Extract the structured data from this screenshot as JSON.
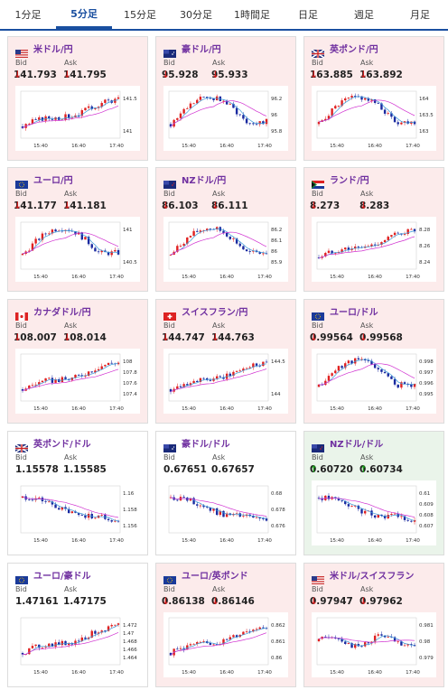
{
  "tabs": [
    "1分足",
    "5分足",
    "15分足",
    "30分足",
    "1時間足",
    "日足",
    "週足",
    "月足"
  ],
  "active_tab": 1,
  "bid_label": "Bid",
  "ask_label": "Ask",
  "x_ticks": [
    "15:40",
    "16:40",
    "17:40"
  ],
  "cards": [
    {
      "pair": "米ドル/円",
      "flag": "us",
      "dir": "down",
      "bid": "141.793",
      "ask": "141.795",
      "y_ticks": [
        "141.5",
        "141"
      ],
      "trend": "up"
    },
    {
      "pair": "豪ドル/円",
      "flag": "au",
      "dir": "down",
      "bid": "95.928",
      "ask": "95.933",
      "y_ticks": [
        "96.2",
        "96",
        "95.8"
      ],
      "trend": "hump"
    },
    {
      "pair": "英ポンド/円",
      "flag": "gb",
      "dir": "down",
      "bid": "163.885",
      "ask": "163.892",
      "y_ticks": [
        "164",
        "163.5",
        "163"
      ],
      "trend": "hump"
    },
    {
      "pair": "ユーロ/円",
      "flag": "eu",
      "dir": "down",
      "bid": "141.177",
      "ask": "141.181",
      "y_ticks": [
        "141",
        "140.5"
      ],
      "trend": "hump"
    },
    {
      "pair": "NZドル/円",
      "flag": "nz",
      "dir": "down",
      "bid": "86.103",
      "ask": "86.111",
      "y_ticks": [
        "86.2",
        "86.1",
        "86",
        "85.9"
      ],
      "trend": "hump"
    },
    {
      "pair": "ランド/円",
      "flag": "za",
      "dir": "down",
      "bid": "8.273",
      "ask": "8.283",
      "y_ticks": [
        "8.28",
        "8.26",
        "8.24"
      ],
      "trend": "up"
    },
    {
      "pair": "カナダドル/円",
      "flag": "ca",
      "dir": "down",
      "bid": "108.007",
      "ask": "108.014",
      "y_ticks": [
        "108",
        "107.8",
        "107.6",
        "107.4"
      ],
      "trend": "up"
    },
    {
      "pair": "スイスフラン/円",
      "flag": "ch",
      "dir": "down",
      "bid": "144.747",
      "ask": "144.763",
      "y_ticks": [
        "144.5",
        "144"
      ],
      "trend": "up"
    },
    {
      "pair": "ユーロ/ドル",
      "flag": "eu",
      "dir": "down",
      "bid": "0.99564",
      "ask": "0.99568",
      "y_ticks": [
        "0.998",
        "0.997",
        "0.996",
        "0.995"
      ],
      "trend": "hump"
    },
    {
      "pair": "英ポンド/ドル",
      "flag": "gb",
      "dir": "flat",
      "bid": "1.15578",
      "ask": "1.15585",
      "y_ticks": [
        "1.16",
        "1.158",
        "1.156"
      ],
      "trend": "down"
    },
    {
      "pair": "豪ドル/ドル",
      "flag": "au",
      "dir": "flat",
      "bid": "0.67651",
      "ask": "0.67657",
      "y_ticks": [
        "0.68",
        "0.678",
        "0.676"
      ],
      "trend": "down"
    },
    {
      "pair": "NZドル/ドル",
      "flag": "nz",
      "dir": "up",
      "bid": "0.60720",
      "ask": "0.60734",
      "y_ticks": [
        "0.61",
        "0.609",
        "0.608",
        "0.607"
      ],
      "trend": "down"
    },
    {
      "pair": "ユーロ/豪ドル",
      "flag": "eu",
      "dir": "flat",
      "bid": "1.47161",
      "ask": "1.47175",
      "y_ticks": [
        "1.472",
        "1.47",
        "1.468",
        "1.466",
        "1.464"
      ],
      "trend": "up"
    },
    {
      "pair": "ユーロ/英ポンド",
      "flag": "eu",
      "dir": "down",
      "bid": "0.86138",
      "ask": "0.86146",
      "y_ticks": [
        "0.862",
        "0.861",
        "0.86"
      ],
      "trend": "up"
    },
    {
      "pair": "米ドル/スイスフラン",
      "flag": "us",
      "dir": "down",
      "bid": "0.97947",
      "ask": "0.97962",
      "y_ticks": [
        "0.981",
        "0.98",
        "0.979"
      ],
      "trend": "flat"
    }
  ],
  "colors": {
    "tab_accent": "#1a4fa0",
    "pair_text": "#7030a0",
    "down_bg": "#fcebeb",
    "up_bg": "#eaf4ea",
    "candle_up": "#e02020",
    "candle_down": "#1a2aa0",
    "ma_short": "#3a9ad9",
    "ma_long": "#d030d0"
  }
}
